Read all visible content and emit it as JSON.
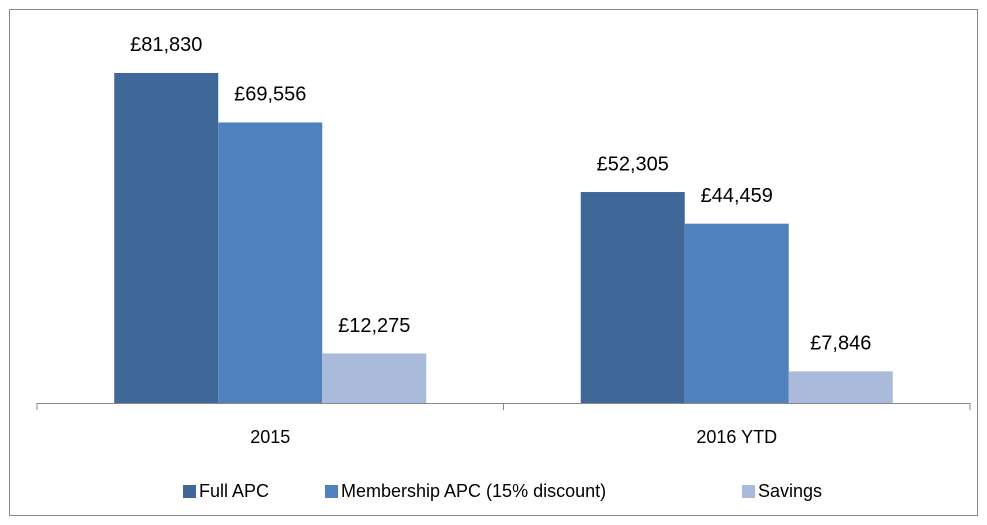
{
  "chart_data": {
    "type": "bar",
    "categories": [
      "2015",
      "2016 YTD"
    ],
    "series": [
      {
        "name": "Full APC",
        "color": "#3f6797",
        "values": [
          81830,
          52305
        ],
        "value_labels": [
          "£81,830",
          "£52,305"
        ]
      },
      {
        "name": "Membership APC (15% discount)",
        "color": "#4f81bd",
        "values": [
          69556,
          44459
        ],
        "value_labels": [
          "£69,556",
          "£44,459"
        ]
      },
      {
        "name": "Savings",
        "color": "#a9badb",
        "values": [
          12275,
          7846
        ],
        "value_labels": [
          "£12,275",
          "£7,846"
        ]
      }
    ],
    "ylim": [
      0,
      90000
    ],
    "legend": "bottom"
  }
}
